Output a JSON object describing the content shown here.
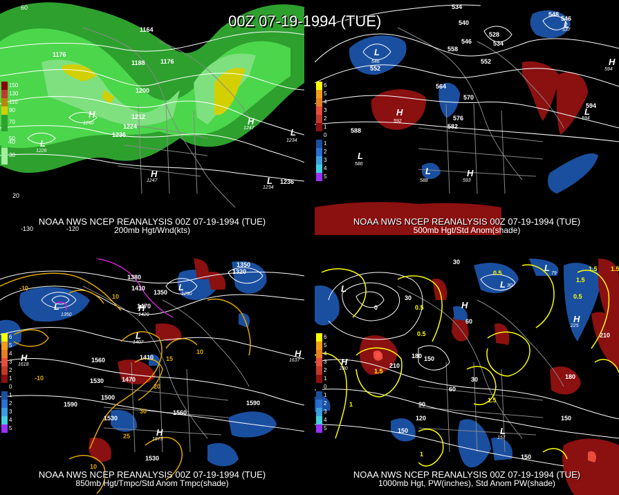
{
  "main_title": "00Z 07-19-1994 (TUE)",
  "panels": [
    {
      "id": "p200",
      "line1": "NOAA NWS NCEP REANALYSIS 00Z 07-19-1994 (TUE)",
      "line2": "200mb Hgt/Wnd(kts)",
      "legend": [
        {
          "label": "150",
          "color": "#8b0000"
        },
        {
          "label": "130",
          "color": "#c0392b"
        },
        {
          "label": "110",
          "color": "#b8860b"
        },
        {
          "label": "90",
          "color": "#d4d000"
        },
        {
          "label": "70",
          "color": "#2ea02e"
        },
        {
          "label": "50",
          "color": "#4cd64c"
        },
        {
          "label": "30",
          "color": "#9ef09e"
        }
      ],
      "contour_labels": [
        "1164",
        "1176",
        "1188",
        "1176",
        "1200",
        "1212",
        "1224",
        "1236",
        "1236"
      ],
      "hl": [
        {
          "t": "H",
          "v": "1240"
        },
        {
          "t": "H",
          "v": "1247"
        },
        {
          "t": "L",
          "v": "1226"
        },
        {
          "t": "L",
          "v": "1234"
        },
        {
          "t": "H",
          "v": "1247"
        },
        {
          "t": "L",
          "v": "1234"
        }
      ],
      "lat": [
        "60",
        "40",
        "20",
        "-130",
        "-120"
      ]
    },
    {
      "id": "p500",
      "line1": "NOAA NWS NCEP REANALYSIS 00Z 07-19-1994 (TUE)",
      "line2": "500mb Hgt/Std Anom(shade)",
      "legend": [
        {
          "label": "6",
          "color": "#ffff00"
        },
        {
          "label": "5",
          "color": "#f39c12"
        },
        {
          "label": "4",
          "color": "#e67e22"
        },
        {
          "label": "3",
          "color": "#e74c3c"
        },
        {
          "label": "2",
          "color": "#c0392b"
        },
        {
          "label": "1",
          "color": "#8b1010"
        },
        {
          "label": "0",
          "color": "#000000"
        },
        {
          "label": "1",
          "color": "#1a4fa0"
        },
        {
          "label": "2",
          "color": "#2a6fd0"
        },
        {
          "label": "3",
          "color": "#3a9fe0"
        },
        {
          "label": "4",
          "color": "#40d0e0"
        },
        {
          "label": "5",
          "color": "#9b30ff"
        }
      ],
      "contour_labels": [
        "534",
        "540",
        "528",
        "534",
        "546",
        "558",
        "552",
        "564",
        "570",
        "576",
        "582",
        "588",
        "594",
        "548",
        "546",
        "537"
      ],
      "hl": [
        {
          "t": "L",
          "v": "546"
        },
        {
          "t": "L",
          "v": "552"
        },
        {
          "t": "H",
          "v": "592"
        },
        {
          "t": "L",
          "v": "586"
        },
        {
          "t": "L",
          "v": "588"
        },
        {
          "t": "H",
          "v": "593"
        },
        {
          "t": "L",
          "v": "537"
        },
        {
          "t": "H",
          "v": "594"
        },
        {
          "t": "L",
          "v": "594"
        }
      ]
    },
    {
      "id": "p850",
      "line1": "NOAA NWS NCEP REANALYSIS 00Z 07-19-1994 (TUE)",
      "line2": "850mb Hgt/Tmpc/Std Anom Tmpc(shade)",
      "legend": [
        {
          "label": "6",
          "color": "#ffff00"
        },
        {
          "label": "5",
          "color": "#f39c12"
        },
        {
          "label": "4",
          "color": "#e67e22"
        },
        {
          "label": "3",
          "color": "#e74c3c"
        },
        {
          "label": "2",
          "color": "#c0392b"
        },
        {
          "label": "1",
          "color": "#8b1010"
        },
        {
          "label": "0",
          "color": "#000000"
        },
        {
          "label": "1",
          "color": "#1a4fa0"
        },
        {
          "label": "2",
          "color": "#2a6fd0"
        },
        {
          "label": "3",
          "color": "#3a9fe0"
        },
        {
          "label": "4",
          "color": "#40d0e0"
        },
        {
          "label": "5",
          "color": "#9b30ff"
        }
      ],
      "contour_labels": [
        "1380",
        "1410",
        "1350",
        "1320",
        "1350",
        "1470",
        "1560",
        "1590",
        "1410",
        "1530",
        "1560",
        "1590",
        "1530",
        "1470",
        "1500",
        "1560",
        "1530",
        "1590",
        "1590",
        "1530"
      ],
      "temp_labels": [
        "-10",
        "10",
        "15",
        "20",
        "25",
        "30",
        "10",
        "10",
        "-10"
      ],
      "hl": [
        {
          "t": "L",
          "v": "1350"
        },
        {
          "t": "L",
          "v": "1290"
        },
        {
          "t": "H",
          "v": "1420"
        },
        {
          "t": "L",
          "v": "1407"
        },
        {
          "t": "H",
          "v": "1637"
        },
        {
          "t": "H",
          "v": "1573"
        },
        {
          "t": "H",
          "v": "1618"
        }
      ]
    },
    {
      "id": "p1000",
      "line1": "NOAA NWS NCEP REANALYSIS 00Z 07-19-1994 (TUE)",
      "line2": "1000mb Hgt, PW(inches), Std Anom PW(shade)",
      "legend": [
        {
          "label": "6",
          "color": "#ffff00"
        },
        {
          "label": "5",
          "color": "#f39c12"
        },
        {
          "label": "4",
          "color": "#e67e22"
        },
        {
          "label": "3",
          "color": "#e74c3c"
        },
        {
          "label": "2",
          "color": "#c0392b"
        },
        {
          "label": "1",
          "color": "#8b1010"
        },
        {
          "label": "0",
          "color": "#000000"
        },
        {
          "label": "1",
          "color": "#1a4fa0"
        },
        {
          "label": "2",
          "color": "#2a6fd0"
        },
        {
          "label": "3",
          "color": "#3a9fe0"
        },
        {
          "label": "4",
          "color": "#40d0e0"
        },
        {
          "label": "5",
          "color": "#9b30ff"
        }
      ],
      "contour_labels": [
        "30",
        "0",
        "30",
        "60",
        "90",
        "120",
        "150",
        "180",
        "210",
        "30",
        "60",
        "90",
        "120",
        "150",
        "180",
        "210",
        "150",
        "180",
        "150"
      ],
      "pw_labels": [
        "0.5",
        "1.5",
        "1.5",
        "0.5",
        "1",
        "1.5",
        "0.5",
        "1.5",
        "1",
        "0.5",
        "1.5"
      ],
      "hl": [
        {
          "t": "L",
          "v": "79"
        },
        {
          "t": "L",
          "v": "30"
        },
        {
          "t": "H",
          "v": "280"
        },
        {
          "t": "H",
          "v": "210"
        },
        {
          "t": "L",
          "v": "1"
        },
        {
          "t": "H",
          "v": "225"
        },
        {
          "t": "L",
          "v": "157"
        }
      ]
    }
  ]
}
